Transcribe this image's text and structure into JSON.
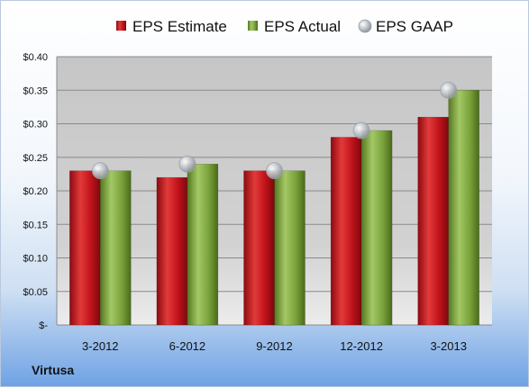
{
  "company": "Virtusa",
  "colors": {
    "estimate": "#c0121a",
    "actual": "#7aa23a",
    "gaap": "#b8bcc4"
  },
  "chart_data": {
    "type": "bar",
    "title": "",
    "xlabel": "",
    "ylabel": "",
    "categories": [
      "3-2012",
      "6-2012",
      "9-2012",
      "12-2012",
      "3-2013"
    ],
    "series": [
      {
        "name": "EPS Estimate",
        "type": "bar",
        "values": [
          0.23,
          0.22,
          0.23,
          0.28,
          0.31
        ]
      },
      {
        "name": "EPS Actual",
        "type": "bar",
        "values": [
          0.23,
          0.24,
          0.23,
          0.29,
          0.35
        ]
      },
      {
        "name": "EPS GAAP",
        "type": "scatter",
        "values": [
          0.23,
          0.24,
          0.23,
          0.29,
          0.35
        ]
      }
    ],
    "ylim": [
      0,
      0.4
    ],
    "yticks": [
      0,
      0.05,
      0.1,
      0.15,
      0.2,
      0.25,
      0.3,
      0.35,
      0.4
    ],
    "ytick_labels": [
      "$-",
      "$0.05",
      "$0.10",
      "$0.15",
      "$0.20",
      "$0.25",
      "$0.30",
      "$0.35",
      "$0.40"
    ],
    "grid": true,
    "legend": "top"
  }
}
